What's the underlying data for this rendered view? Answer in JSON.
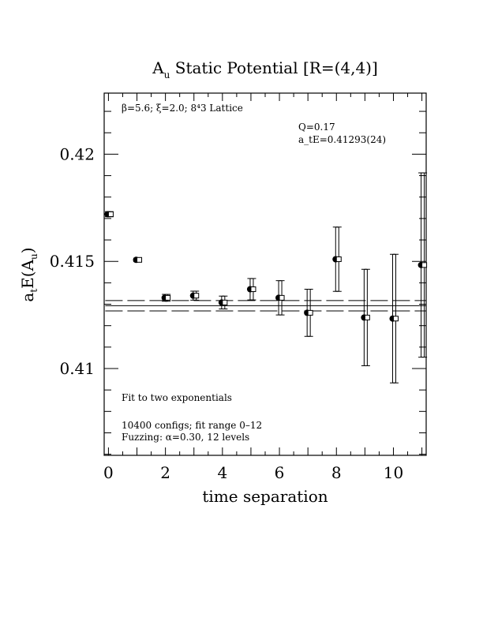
{
  "chart_data": {
    "type": "scatter",
    "title": "A_u Static Potential [R=(4,4)]",
    "xlabel": "time separation",
    "ylabel": "a_tE(A_u)",
    "xlim": [
      -0.15,
      11.15
    ],
    "ylim": [
      0.40595,
      0.42285
    ],
    "x_ticks": [
      "0",
      "2",
      "4",
      "6",
      "8",
      "10"
    ],
    "y_ticks": [
      "0.41",
      "0.415",
      "0.42"
    ],
    "grid": false,
    "annotations": {
      "lattice": "β=5.6; ξ=2.0; 8⁴3 Lattice",
      "q": "Q=0.17",
      "energy": "a_tE=0.41293(24)",
      "fit": "Fit to two exponentials",
      "configs": "10400 configs; fit range 0–12",
      "fuzzing": "Fuzzing: α=0.30, 12 levels"
    },
    "fit": {
      "value": 0.41293,
      "error": 0.00024,
      "range": [
        0,
        12
      ]
    },
    "series": [
      {
        "marker": "filled-circle",
        "points": [
          {
            "x": 0,
            "y": 0.4172,
            "err": 0.00012
          },
          {
            "x": 1,
            "y": 0.41507,
            "err": 8e-05
          },
          {
            "x": 2,
            "y": 0.4133,
            "err": 0.00016
          },
          {
            "x": 3,
            "y": 0.4134,
            "err": 0.00021
          },
          {
            "x": 4,
            "y": 0.41308,
            "err": 0.0003
          },
          {
            "x": 5,
            "y": 0.4137,
            "err": 0.0005
          },
          {
            "x": 6,
            "y": 0.4133,
            "err": 0.0008
          },
          {
            "x": 7,
            "y": 0.4126,
            "err": 0.0011
          },
          {
            "x": 8,
            "y": 0.4151,
            "err": 0.0015
          },
          {
            "x": 9,
            "y": 0.41238,
            "err": 0.00225
          },
          {
            "x": 10,
            "y": 0.41233,
            "err": 0.003
          },
          {
            "x": 11,
            "y": 0.41483,
            "err": 0.0043
          }
        ]
      },
      {
        "marker": "open-square",
        "points": [
          {
            "x": 0,
            "y": 0.4172,
            "err": 0.00012
          },
          {
            "x": 1,
            "y": 0.41507,
            "err": 8e-05
          },
          {
            "x": 2,
            "y": 0.4133,
            "err": 0.00016
          },
          {
            "x": 3,
            "y": 0.4134,
            "err": 0.00021
          },
          {
            "x": 4,
            "y": 0.41308,
            "err": 0.0003
          },
          {
            "x": 5,
            "y": 0.4137,
            "err": 0.0005
          },
          {
            "x": 6,
            "y": 0.4133,
            "err": 0.0008
          },
          {
            "x": 7,
            "y": 0.4126,
            "err": 0.0011
          },
          {
            "x": 8,
            "y": 0.4151,
            "err": 0.0015
          },
          {
            "x": 9,
            "y": 0.41238,
            "err": 0.00225
          },
          {
            "x": 10,
            "y": 0.41233,
            "err": 0.003
          },
          {
            "x": 11,
            "y": 0.41483,
            "err": 0.0043
          }
        ]
      }
    ]
  }
}
